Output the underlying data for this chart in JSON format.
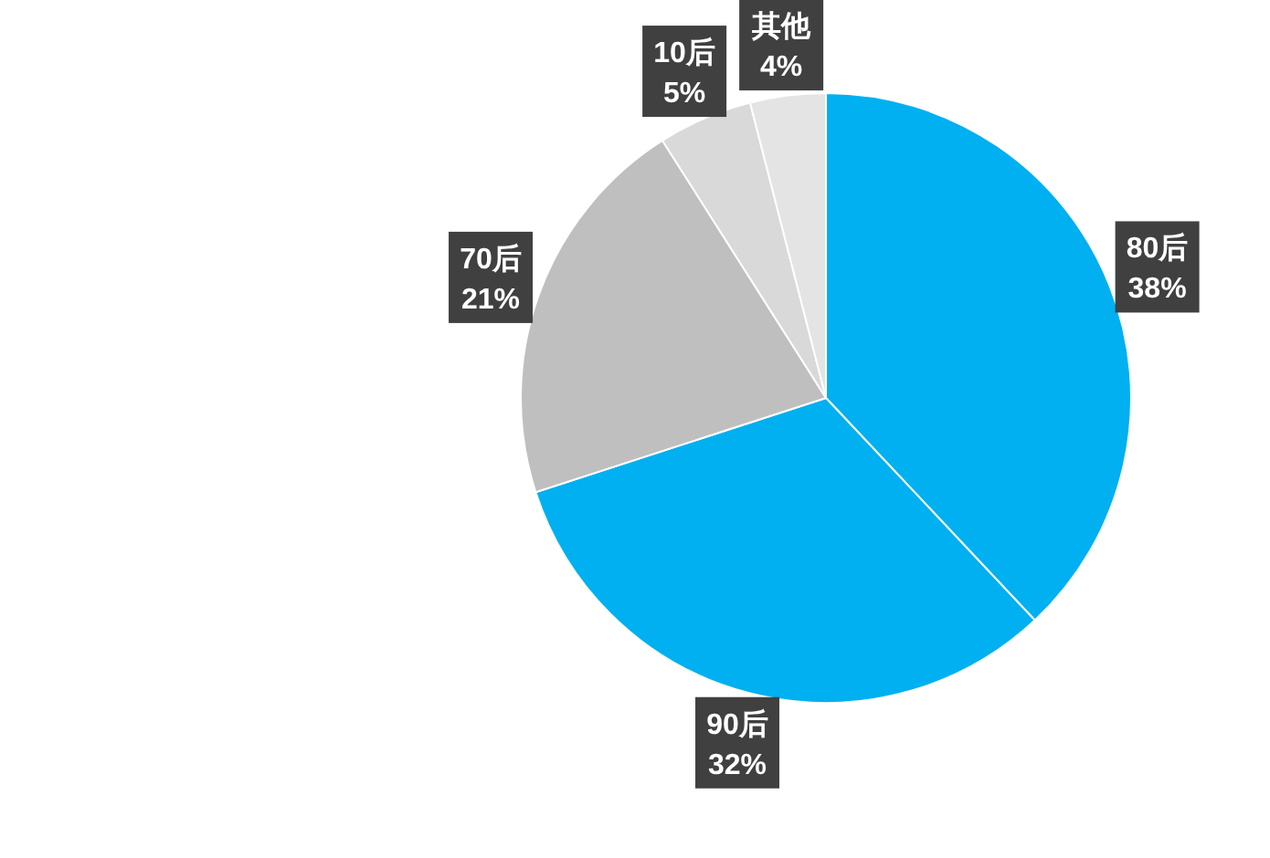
{
  "chart_data": {
    "type": "pie",
    "categories": [
      "80后",
      "90后",
      "70后",
      "10后",
      "其他"
    ],
    "values": [
      38,
      32,
      21,
      5,
      4
    ],
    "value_labels": [
      "38%",
      "32%",
      "21%",
      "5%",
      "4%"
    ],
    "colors": [
      "#00b0f0",
      "#00b0f0",
      "#bfbfbf",
      "#d9d9d9",
      "#e4e4e4"
    ],
    "legend": false
  }
}
